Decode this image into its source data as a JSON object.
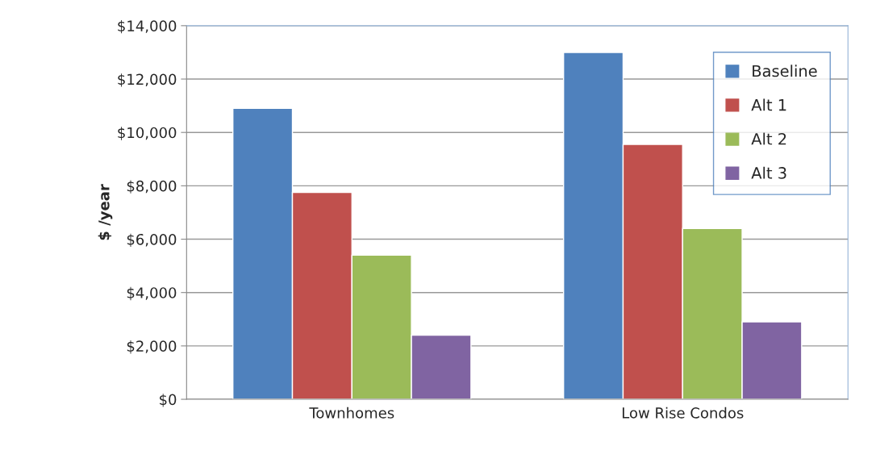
{
  "chart_data": {
    "type": "bar",
    "ylabel": "$ /year",
    "categories": [
      "Townhomes",
      "Low Rise Condos"
    ],
    "series": [
      {
        "name": "Baseline",
        "color": "#4f81bd",
        "values": [
          10900,
          13000
        ]
      },
      {
        "name": "Alt 1",
        "color": "#c0504d",
        "values": [
          7750,
          9550
        ]
      },
      {
        "name": "Alt 2",
        "color": "#9bbb59",
        "values": [
          5400,
          6400
        ]
      },
      {
        "name": "Alt 3",
        "color": "#8064a2",
        "values": [
          2400,
          2900
        ]
      }
    ],
    "ylim": [
      0,
      14000
    ],
    "yticks": [
      {
        "value": 0,
        "label": "$0"
      },
      {
        "value": 2000,
        "label": "$2,000"
      },
      {
        "value": 4000,
        "label": "$4,000"
      },
      {
        "value": 6000,
        "label": "$6,000"
      },
      {
        "value": 8000,
        "label": "$8,000"
      },
      {
        "value": 10000,
        "label": "$10,000"
      },
      {
        "value": 12000,
        "label": "$12,000"
      },
      {
        "value": 14000,
        "label": "$14,000"
      }
    ],
    "grid": "y",
    "legend": "top right"
  }
}
